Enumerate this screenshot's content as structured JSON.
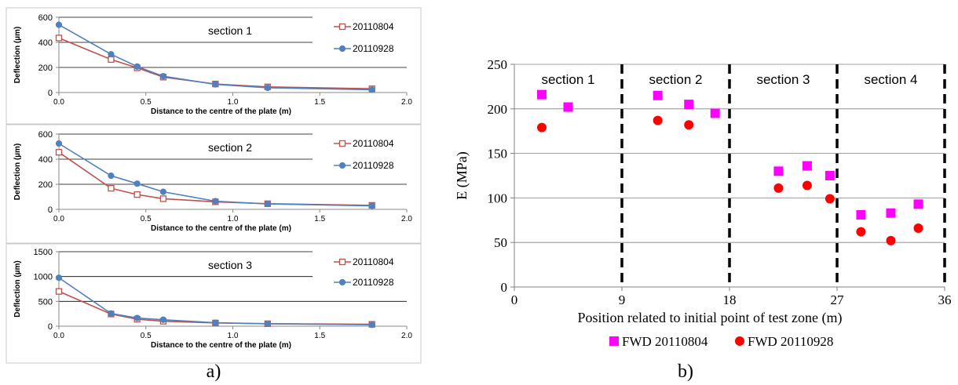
{
  "panel_a_label": "a)",
  "panel_b_label": "b)",
  "chart_data": [
    {
      "type": "line",
      "panel": "a",
      "title": "section 1",
      "xlabel": "Distance to the centre of the plate  (m)",
      "ylabel": "Deflection (µm)",
      "xlim": [
        0,
        2.0
      ],
      "ylim": [
        0,
        600
      ],
      "xticks": [
        "0.0",
        "0.5",
        "1.0",
        "1.5",
        "2.0"
      ],
      "yticks": [
        "0",
        "200",
        "400",
        "600"
      ],
      "legend_position": "right",
      "series": [
        {
          "name": "20110804",
          "marker": "open-square",
          "color": "#c0504d",
          "x": [
            0.0,
            0.3,
            0.45,
            0.6,
            0.9,
            1.2,
            1.8
          ],
          "y": [
            435,
            263,
            197,
            123,
            68,
            45,
            30
          ]
        },
        {
          "name": "20110928",
          "marker": "filled-circle",
          "color": "#4f81bd",
          "x": [
            0.0,
            0.3,
            0.45,
            0.6,
            0.9,
            1.2,
            1.8
          ],
          "y": [
            540,
            305,
            207,
            130,
            65,
            38,
            22
          ]
        }
      ]
    },
    {
      "type": "line",
      "panel": "a",
      "title": "section 2",
      "xlabel": "Distance to the centre of the plate  (m)",
      "ylabel": "Deflection (µm)",
      "xlim": [
        0,
        2.0
      ],
      "ylim": [
        0,
        600
      ],
      "xticks": [
        "0.0",
        "0.5",
        "1.0",
        "1.5",
        "2.0"
      ],
      "yticks": [
        "0",
        "200",
        "400",
        "600"
      ],
      "legend_position": "right",
      "series": [
        {
          "name": "20110804",
          "marker": "open-square",
          "color": "#c0504d",
          "x": [
            0.0,
            0.3,
            0.45,
            0.6,
            0.9,
            1.2,
            1.8
          ],
          "y": [
            455,
            168,
            118,
            85,
            60,
            45,
            32
          ]
        },
        {
          "name": "20110928",
          "marker": "filled-circle",
          "color": "#4f81bd",
          "x": [
            0.0,
            0.3,
            0.45,
            0.6,
            0.9,
            1.2,
            1.8
          ],
          "y": [
            525,
            268,
            205,
            140,
            65,
            43,
            28
          ]
        }
      ]
    },
    {
      "type": "line",
      "panel": "a",
      "title": "section 3",
      "xlabel": "Distance to the centre of the plate  (m)",
      "ylabel": "Deflection (µm)",
      "xlim": [
        0,
        2.0
      ],
      "ylim": [
        0,
        1500
      ],
      "xticks": [
        "0.0",
        "0.5",
        "1.0",
        "1.5",
        "2.0"
      ],
      "yticks": [
        "0",
        "500",
        "1000",
        "1500"
      ],
      "legend_position": "right",
      "series": [
        {
          "name": "20110804",
          "marker": "open-square",
          "color": "#c0504d",
          "x": [
            0.0,
            0.3,
            0.45,
            0.6,
            0.9,
            1.2,
            1.8
          ],
          "y": [
            700,
            245,
            140,
            100,
            65,
            50,
            38
          ]
        },
        {
          "name": "20110928",
          "marker": "filled-circle",
          "color": "#4f81bd",
          "x": [
            0.0,
            0.3,
            0.45,
            0.6,
            0.9,
            1.2,
            1.8
          ],
          "y": [
            975,
            255,
            165,
            130,
            70,
            48,
            28
          ]
        }
      ]
    },
    {
      "type": "scatter",
      "panel": "b",
      "xlabel": "Position related to initial point of test zone (m)",
      "ylabel": "E (MPa)",
      "xlim": [
        0,
        36
      ],
      "ylim": [
        0,
        250
      ],
      "xticks": [
        "0",
        "9",
        "18",
        "27",
        "36"
      ],
      "yticks": [
        "0",
        "50",
        "100",
        "150",
        "200",
        "250"
      ],
      "grid": true,
      "legend_position": "bottom",
      "section_labels": [
        "section 1",
        "section 2",
        "section 3",
        "section 4"
      ],
      "series": [
        {
          "name": "FWD 20110804",
          "marker": "square",
          "color": "#ff00ff",
          "x": [
            2.3,
            4.5,
            12.0,
            14.6,
            16.8,
            22.1,
            24.5,
            26.4,
            29.0,
            31.5,
            33.8
          ],
          "y": [
            216,
            202,
            215,
            205,
            195,
            130,
            136,
            125,
            81,
            83,
            93
          ]
        },
        {
          "name": "FWD 20110928",
          "marker": "circle",
          "color": "#ff0000",
          "x": [
            2.3,
            12.0,
            14.6,
            22.1,
            24.5,
            26.4,
            29.0,
            31.5,
            33.8
          ],
          "y": [
            179,
            187,
            182,
            111,
            114,
            99,
            62,
            52,
            66
          ]
        }
      ]
    }
  ]
}
